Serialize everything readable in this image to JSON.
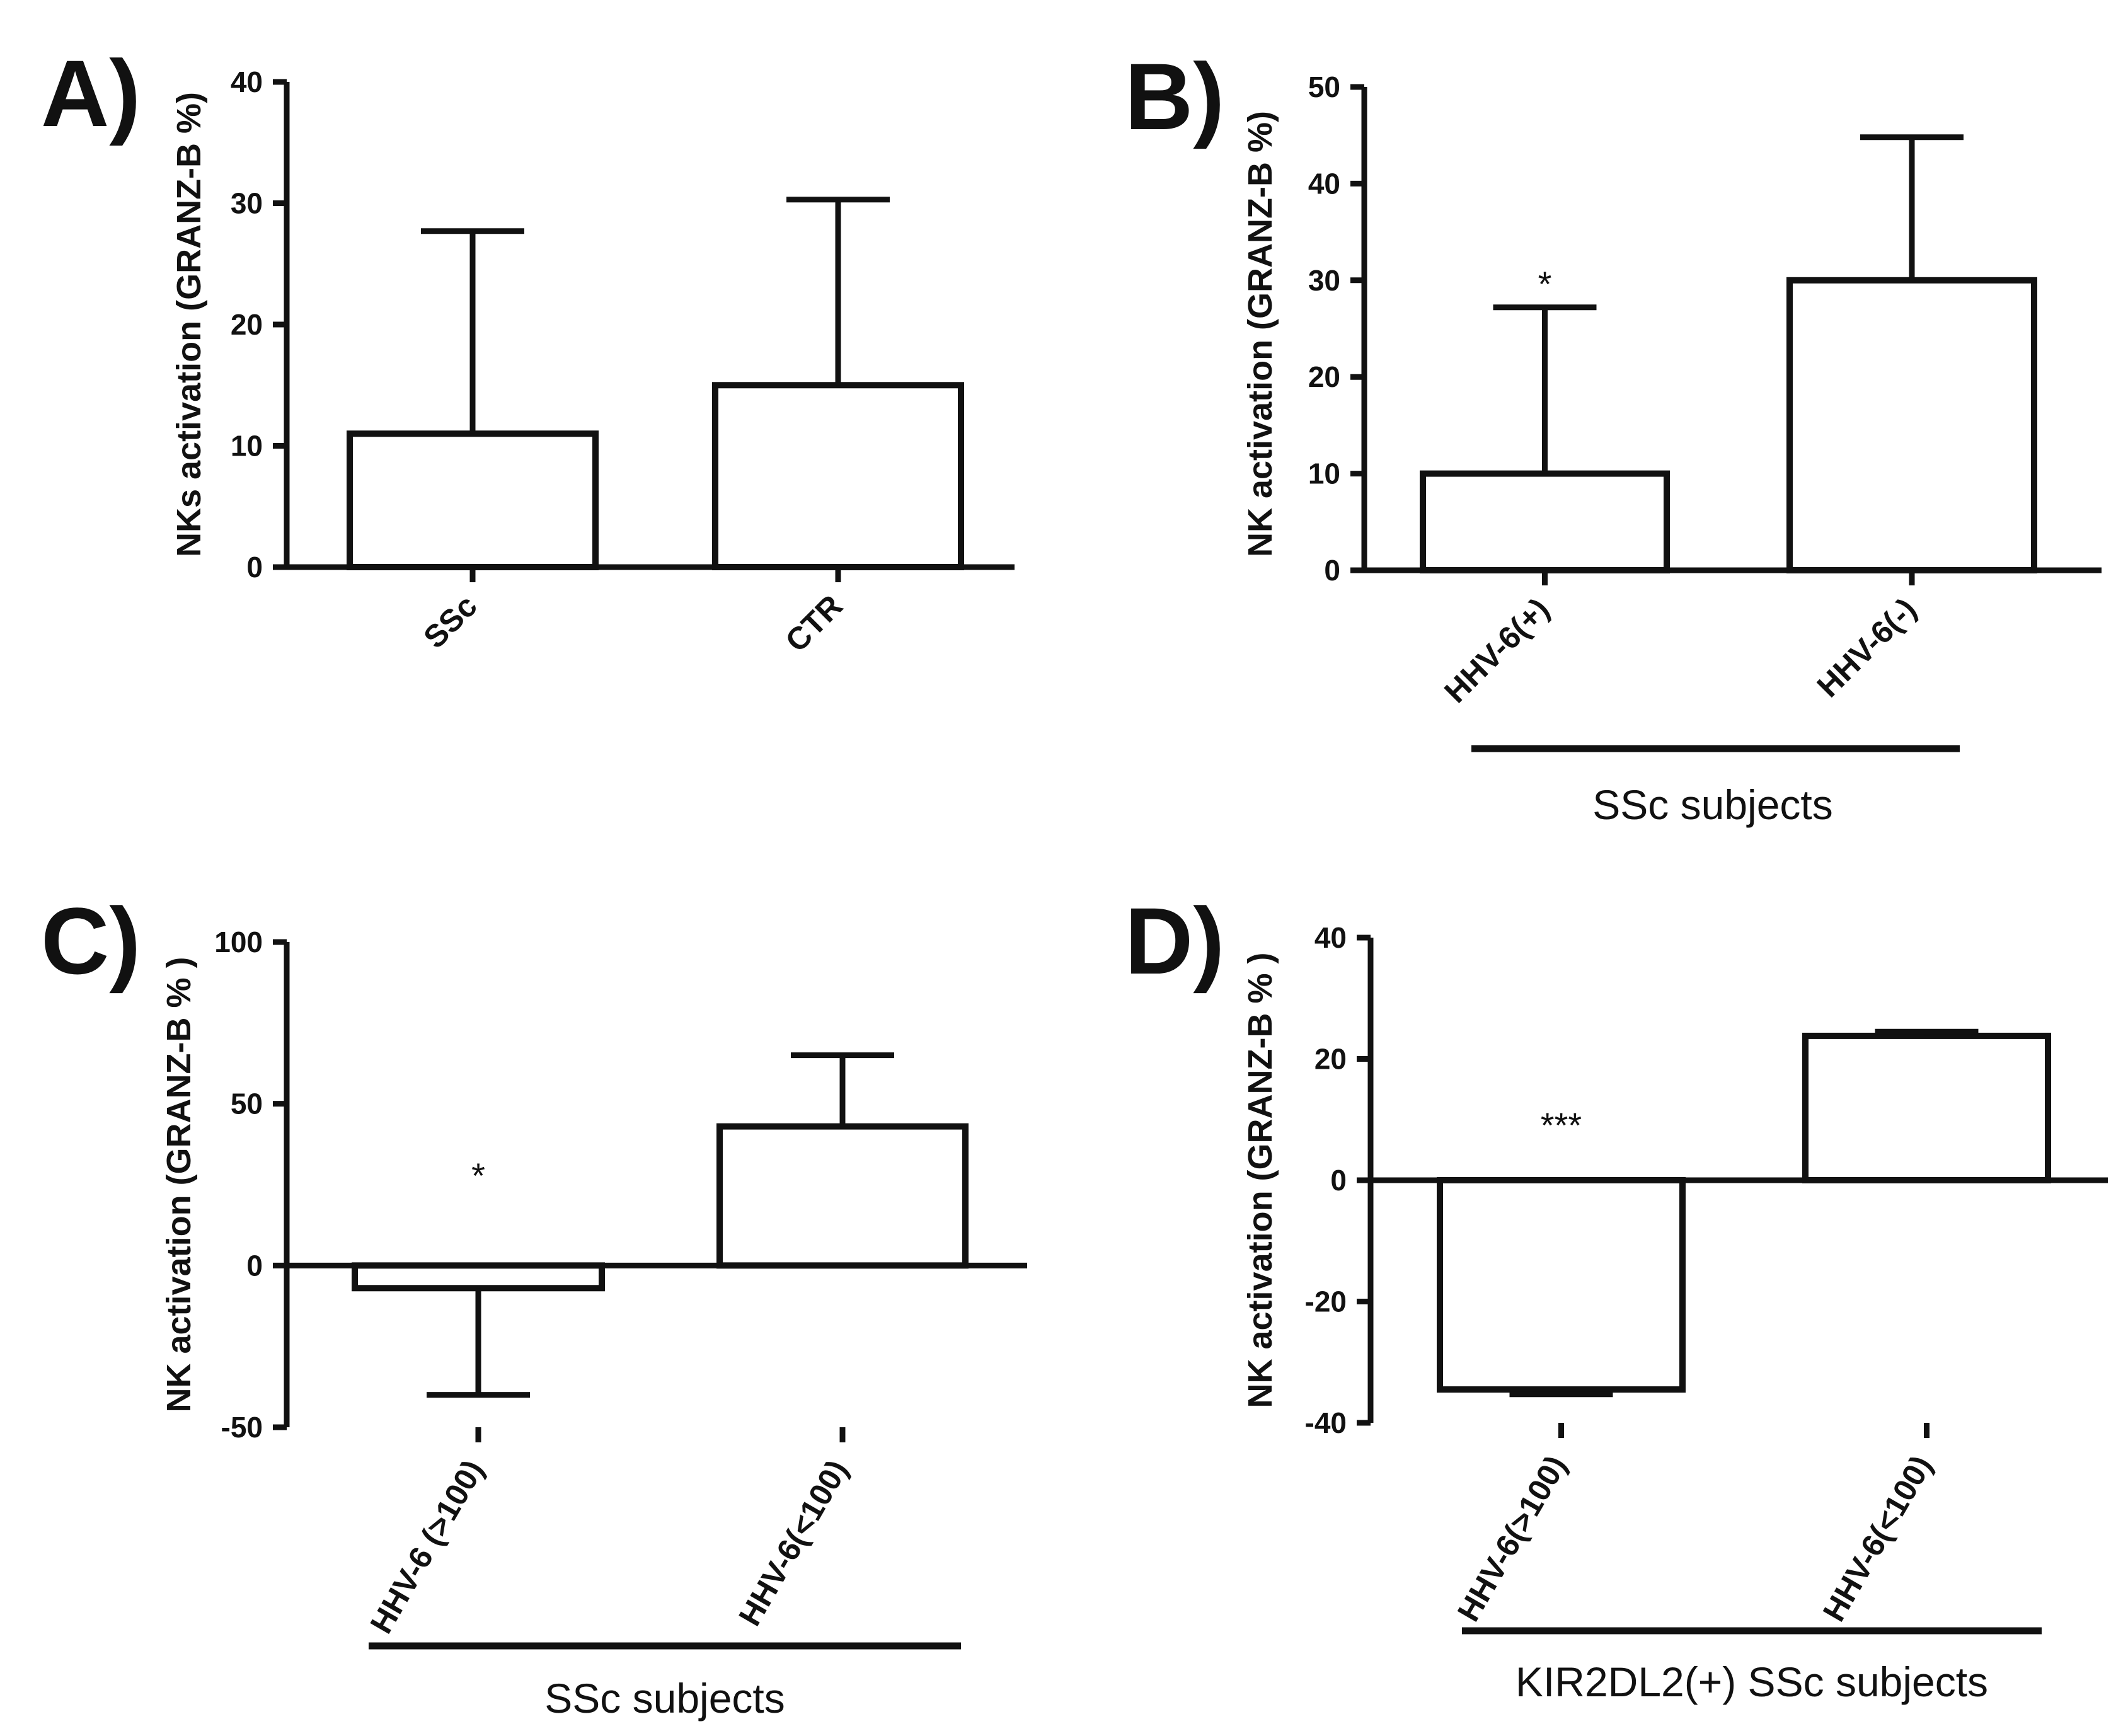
{
  "chart_data": [
    {
      "panel": "A)",
      "type": "bar",
      "ylabel": "NKs activation (GRANZ-B %)",
      "categories": [
        "SSc",
        "CTR"
      ],
      "values": [
        11,
        15
      ],
      "error_upper": [
        27.7,
        30.3
      ],
      "ylim": [
        0,
        40
      ],
      "yticks": [
        0,
        10,
        20,
        30,
        40
      ],
      "significance": [
        "",
        ""
      ],
      "group_label": ""
    },
    {
      "panel": "B)",
      "type": "bar",
      "ylabel": "NK activation (GRANZ-B %)",
      "categories": [
        "HHV-6(+)",
        "HHV-6(-)"
      ],
      "values": [
        10,
        30
      ],
      "error_upper": [
        27.2,
        44.8
      ],
      "ylim": [
        0,
        50
      ],
      "yticks": [
        0,
        10,
        20,
        30,
        40,
        50
      ],
      "significance": [
        "*",
        ""
      ],
      "group_label": "SSc subjects"
    },
    {
      "panel": "C)",
      "type": "bar",
      "ylabel": "NK activation (GRANZ-B % )",
      "categories": [
        "HHV-6 (>100)",
        "HHV-6(<100)"
      ],
      "values": [
        -7,
        43
      ],
      "error_upper": [
        -40,
        65
      ],
      "ylim": [
        -50,
        100
      ],
      "yticks": [
        -50,
        0,
        50,
        100
      ],
      "significance": [
        "*",
        ""
      ],
      "group_label": "SSc subjects"
    },
    {
      "panel": "D)",
      "type": "bar",
      "ylabel": "NK activation (GRANZ-B % )",
      "categories": [
        "HHV-6(>100)",
        "HHV-6(<100)"
      ],
      "values": [
        -34.5,
        23.8
      ],
      "error_upper": [
        -35.3,
        24.5
      ],
      "ylim": [
        -40,
        40
      ],
      "yticks": [
        -40,
        -20,
        0,
        20,
        40
      ],
      "significance": [
        "***",
        ""
      ],
      "group_label": "KIR2DL2(+) SSc subjects"
    }
  ]
}
